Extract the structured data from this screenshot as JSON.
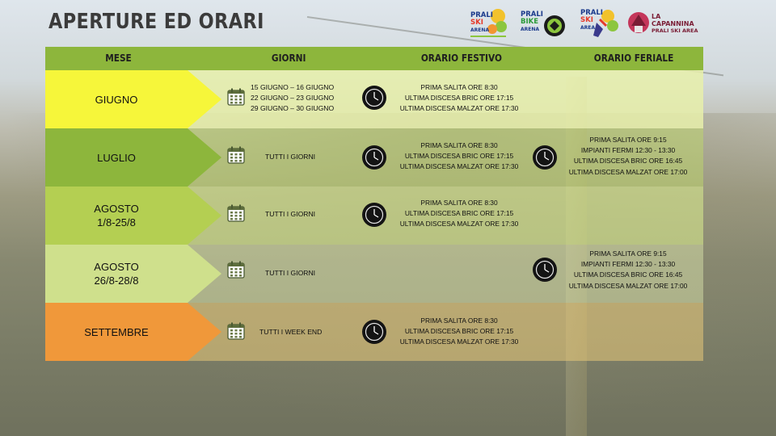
{
  "page": {
    "title": "APERTURE ED ORARI"
  },
  "logos": [
    {
      "name": "prali-ski-arena",
      "lines": [
        "PRALI",
        "SKI",
        "ARENA"
      ]
    },
    {
      "name": "prali-bike-arena",
      "lines": [
        "PRALI",
        "BIKE",
        "ARENA"
      ]
    },
    {
      "name": "prali-ski-arena-2",
      "lines": [
        "PRALI",
        "SKI",
        "AREA"
      ]
    },
    {
      "name": "la-capannina",
      "lines": [
        "LA",
        "CAPANNINA",
        "PRALI SKI AREA"
      ]
    }
  ],
  "header": {
    "mese": "MESE",
    "giorni": "GIORNI",
    "festivo": "ORARIO FESTIVO",
    "feriale": "ORARIO FERIALE"
  },
  "colors": {
    "header": "#8db63c",
    "giugno": "#f6f63a",
    "luglio": "#8db63c",
    "agosto1": "#b4cf52",
    "agosto2": "#cfe08c",
    "settembre": "#f0983a"
  },
  "icons": {
    "calendar": "calendar-icon",
    "clock": "clock-icon"
  },
  "rows": [
    {
      "month": [
        "GIUGNO"
      ],
      "days": [
        "15 GIUGNO – 16 GIUGNO",
        "22 GIUGNO – 23 GIUGNO",
        "29 GIUGNO – 30 GIUGNO"
      ],
      "festivo": [
        "PRIMA SALITA ORE 8:30",
        "ULTIMA DISCESA BRIC ORE 17:15",
        "ULTIMA DISCESA MALZAT ORE 17:30"
      ],
      "feriale": []
    },
    {
      "month": [
        "LUGLIO"
      ],
      "days": [
        "TUTTI I GIORNI"
      ],
      "festivo": [
        "PRIMA SALITA ORE 8:30",
        "ULTIMA DISCESA BRIC ORE 17:15",
        "ULTIMA DISCESA MALZAT ORE 17:30"
      ],
      "feriale": [
        "PRIMA SALITA ORE 9:15",
        "IMPIANTI FERMI 12:30 - 13:30",
        "ULTIMA DISCESA BRIC ORE 16:45",
        "ULTIMA DISCESA MALZAT ORE 17:00"
      ]
    },
    {
      "month": [
        "AGOSTO",
        "1/8-25/8"
      ],
      "days": [
        "TUTTI I GIORNI"
      ],
      "festivo": [
        "PRIMA SALITA ORE 8:30",
        "ULTIMA DISCESA BRIC ORE 17:15",
        "ULTIMA DISCESA MALZAT ORE 17:30"
      ],
      "feriale": []
    },
    {
      "month": [
        "AGOSTO",
        "26/8-28/8"
      ],
      "days": [
        "TUTTI I GIORNI"
      ],
      "festivo": [],
      "feriale": [
        "PRIMA SALITA ORE 9:15",
        "IMPIANTI FERMI 12:30 - 13:30",
        "ULTIMA DISCESA BRIC ORE 16:45",
        "ULTIMA DISCESA MALZAT ORE 17:00"
      ]
    },
    {
      "month": [
        "SETTEMBRE"
      ],
      "days": [
        "TUTTI I WEEK END"
      ],
      "festivo": [
        "PRIMA SALITA ORE 8:30",
        "ULTIMA DISCESA BRIC ORE 17:15",
        "ULTIMA DISCESA MALZAT ORE 17:30"
      ],
      "feriale": []
    }
  ]
}
